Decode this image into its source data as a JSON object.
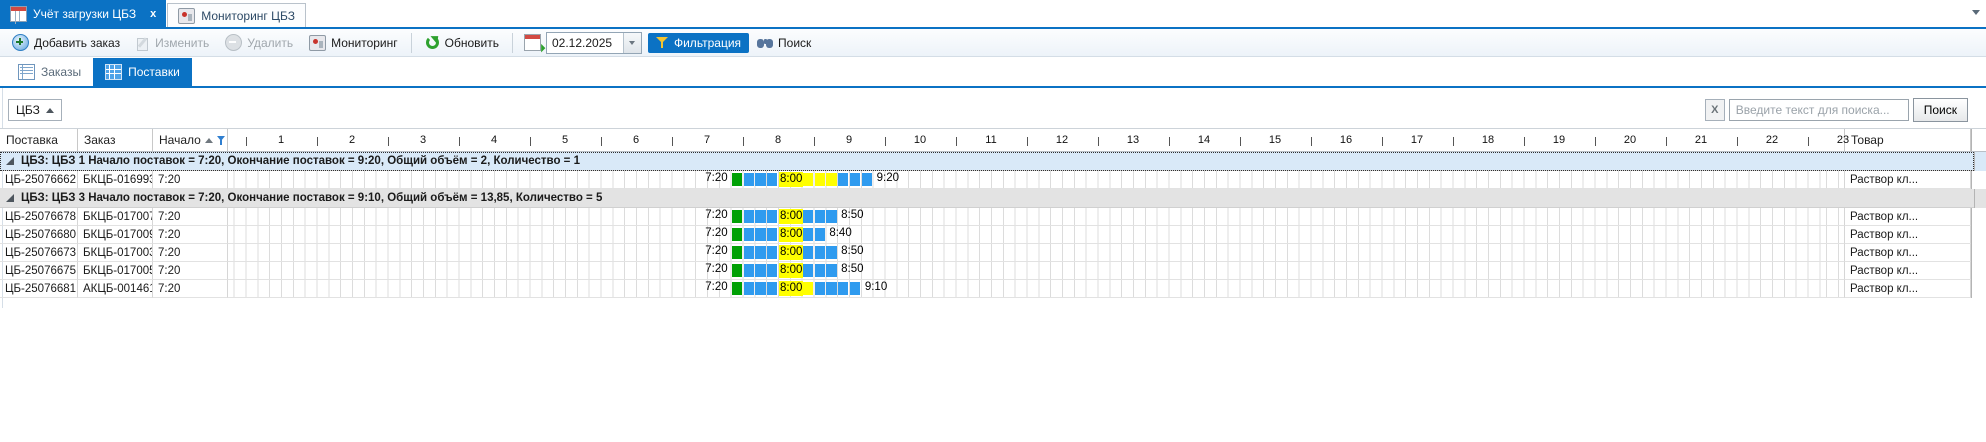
{
  "colors": {
    "accent": "#0b72c4",
    "gantt_green": "#00a005",
    "gantt_blue": "#2f9bef",
    "gantt_yellow": "#ffff00",
    "group1_bg": "#d9e9f8",
    "group2_bg": "#e3e3e3"
  },
  "top_tabs": [
    {
      "label": "Учёт загрузки ЦБЗ",
      "close": "x",
      "active": true
    },
    {
      "label": "Мониторинг ЦБЗ",
      "active": false
    }
  ],
  "toolbar": {
    "add": "Добавить заказ",
    "edit": "Изменить",
    "delete": "Удалить",
    "monitoring": "Мониторинг",
    "refresh": "Обновить",
    "date": "02.12.2025",
    "filter": "Фильтрация",
    "search": "Поиск"
  },
  "view_tabs": [
    {
      "label": "Заказы",
      "active": false
    },
    {
      "label": "Поставки",
      "active": true
    }
  ],
  "group_panel": {
    "field": "ЦБЗ"
  },
  "search_bar": {
    "clear": "X",
    "placeholder": "Введите текст для поиска...",
    "button": "Поиск"
  },
  "grid": {
    "columns": {
      "delivery": "Поставка",
      "order": "Заказ",
      "start": "Начало",
      "product": "Товар"
    },
    "hours": [
      1,
      2,
      3,
      4,
      5,
      6,
      7,
      8,
      9,
      10,
      11,
      12,
      13,
      14,
      15,
      16,
      17,
      18,
      19,
      20,
      21,
      22,
      23
    ],
    "groups": [
      {
        "title": "ЦБЗ: ЦБЗ 1 Начало поставок = 7:20, Окончание поставок = 9:20, Общий объём = 2, Количество = 1",
        "focused": true,
        "rows": [
          {
            "delivery": "ЦБ-25076662",
            "order": "БКЦБ-016993",
            "start": "7:20",
            "end": "9:20",
            "yellow_from": "8:00",
            "yellow_to": "8:50",
            "product": "Раствор кл..."
          }
        ]
      },
      {
        "title": "ЦБЗ: ЦБЗ 3 Начало поставок = 7:20, Окончание поставок = 9:10, Общий объём = 13,85, Количество = 5",
        "focused": false,
        "rows": [
          {
            "delivery": "ЦБ-25076678",
            "order": "БКЦБ-017007",
            "start": "7:20",
            "end": "8:50",
            "yellow_from": "8:00",
            "yellow_to": "8:20",
            "product": "Раствор кл..."
          },
          {
            "delivery": "ЦБ-25076680",
            "order": "БКЦБ-017009",
            "start": "7:20",
            "end": "8:40",
            "yellow_from": "8:00",
            "yellow_to": "8:20",
            "product": "Раствор кл..."
          },
          {
            "delivery": "ЦБ-25076673",
            "order": "БКЦБ-017003",
            "start": "7:20",
            "end": "8:50",
            "yellow_from": "8:00",
            "yellow_to": "8:20",
            "product": "Раствор кл..."
          },
          {
            "delivery": "ЦБ-25076675",
            "order": "БКЦБ-017005",
            "start": "7:20",
            "end": "8:50",
            "yellow_from": "8:00",
            "yellow_to": "8:20",
            "product": "Раствор кл..."
          },
          {
            "delivery": "ЦБ-25076681",
            "order": "АКЦБ-001461",
            "start": "7:20",
            "end": "9:10",
            "yellow_from": "8:00",
            "yellow_to": "8:30",
            "product": "Раствор кл..."
          }
        ]
      }
    ]
  }
}
